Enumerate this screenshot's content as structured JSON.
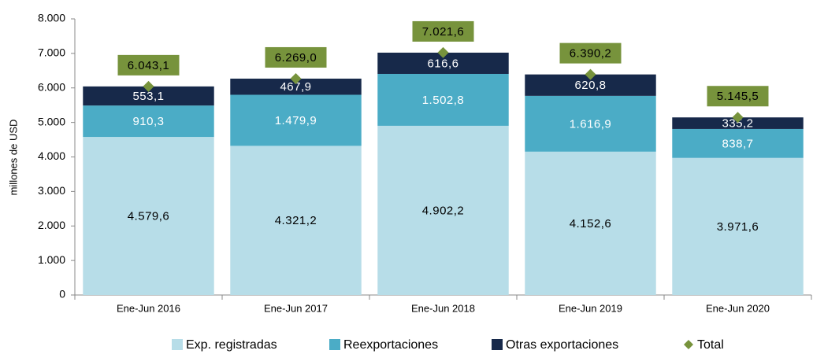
{
  "chart_data": {
    "type": "bar",
    "stacked": true,
    "y_label": "millones de USD",
    "categories": [
      "Ene-Jun 2016",
      "Ene-Jun 2017",
      "Ene-Jun 2018",
      "Ene-Jun 2019",
      "Ene-Jun 2020"
    ],
    "series": [
      {
        "name": "Exp. registradas",
        "color": "#b7dde8",
        "label_color": "#000000",
        "values": [
          4579.6,
          4321.2,
          4902.2,
          4152.6,
          3971.6
        ],
        "value_labels": [
          "4.579,6",
          "4.321,2",
          "4.902,2",
          "4.152,6",
          "3.971,6"
        ]
      },
      {
        "name": "Reexportaciones",
        "color": "#4bacc6",
        "label_color": "#ffffff",
        "values": [
          910.3,
          1479.9,
          1502.8,
          1616.9,
          838.7
        ],
        "value_labels": [
          "910,3",
          "1.479,9",
          "1.502,8",
          "1.616,9",
          "838,7"
        ]
      },
      {
        "name": "Otras exportaciones",
        "color": "#17294a",
        "label_color": "#ffffff",
        "values": [
          553.1,
          467.9,
          616.6,
          620.8,
          335.2
        ],
        "value_labels": [
          "553,1",
          "467,9",
          "616,6",
          "620,8",
          "335,2"
        ]
      },
      {
        "name": "Total",
        "color": "#77933c",
        "marker": "diamond",
        "values": [
          6043.1,
          6269.0,
          7021.6,
          6390.2,
          5145.5
        ],
        "value_labels": [
          "6.043,1",
          "6.269,0",
          "7.021,6",
          "6.390,2",
          "5.145,5"
        ]
      }
    ],
    "ylim": [
      0,
      8000
    ],
    "yticks": [
      0,
      {
        "value": 1000,
        "label": "1.000"
      },
      {
        "value": 2000,
        "label": "2.000"
      },
      {
        "value": 3000,
        "label": "3.000"
      },
      {
        "value": 4000,
        "label": "4.000"
      },
      {
        "value": 5000,
        "label": "5.000"
      },
      {
        "value": 6000,
        "label": "6.000"
      },
      {
        "value": 7000,
        "label": "7.000"
      },
      {
        "value": 8000,
        "label": "8.000"
      }
    ],
    "legend": "bottom"
  }
}
